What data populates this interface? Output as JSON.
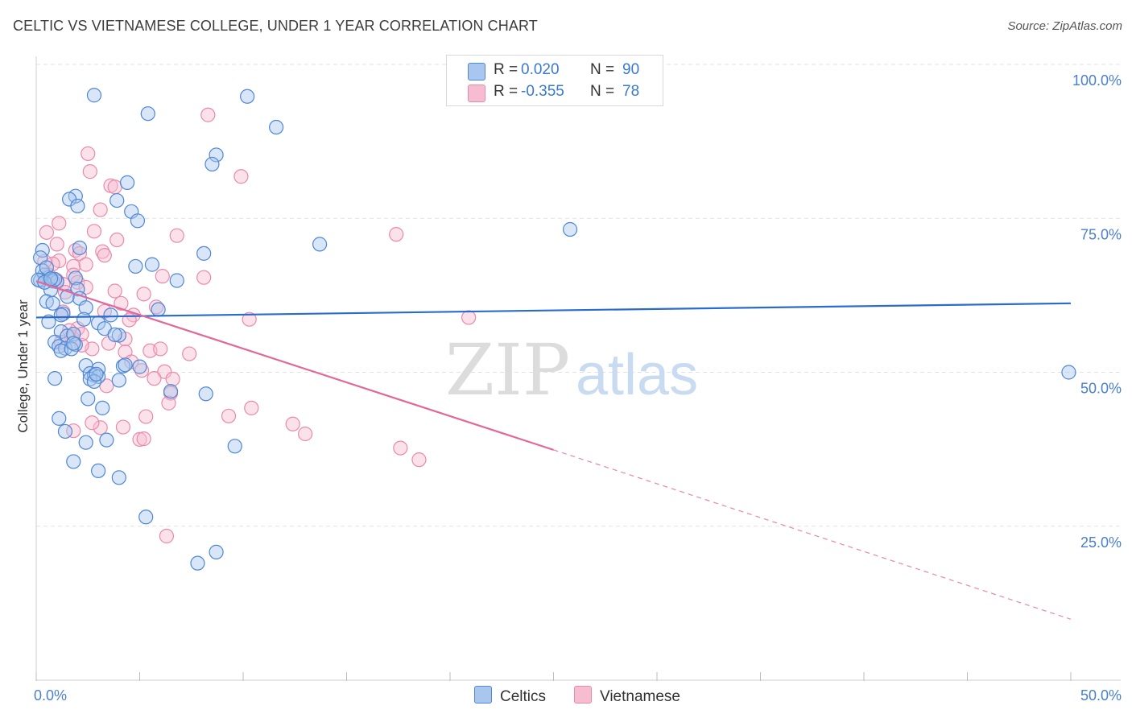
{
  "title": "CELTIC VS VIETNAMESE COLLEGE, UNDER 1 YEAR CORRELATION CHART",
  "source": "Source: ZipAtlas.com",
  "watermark": {
    "zip": "ZIP",
    "atlas": "atlas"
  },
  "legend": {
    "celtic": {
      "r_label": "R =",
      "r_value": "0.020",
      "n_label": "N =",
      "n_value": "90"
    },
    "vietnamese": {
      "r_label": "R =",
      "r_value": "-0.355",
      "n_label": "N =",
      "n_value": "78"
    }
  },
  "bottom_legend": {
    "celtic": "Celtics",
    "vietnamese": "Vietnamese"
  },
  "colors": {
    "celtic_fill": "#a9c7ee",
    "celtic_stroke": "#4f86d6",
    "celtic_line": "#2a6bcf",
    "viet_fill": "#f6bdd0",
    "viet_stroke": "#e98aab",
    "viet_line": "#e0689a",
    "grid": "#e2e2e2",
    "axis_text": "#4a7fd0"
  },
  "chart_data": {
    "type": "scatter",
    "title": "CELTIC VS VIETNAMESE COLLEGE, UNDER 1 YEAR CORRELATION CHART",
    "xlabel": "",
    "ylabel": "College, Under 1 year",
    "xlim": [
      0,
      50
    ],
    "ylim": [
      0,
      105
    ],
    "x_tick_labels": [
      "0.0%",
      "50.0%"
    ],
    "y_tick_labels": [
      "100.0%",
      "75.0%",
      "50.0%",
      "25.0%"
    ],
    "y_ticks": [
      100,
      75,
      50,
      25
    ],
    "grid": true,
    "series": [
      {
        "name": "Celtics",
        "r": 0.02,
        "n": 90,
        "trend": {
          "x0": 0,
          "y0": 58.9,
          "x1": 50,
          "y1": 61.2
        },
        "points": [
          [
            2.8,
            95.0
          ],
          [
            10.2,
            94.8
          ],
          [
            5.4,
            92.0
          ],
          [
            11.6,
            89.8
          ],
          [
            8.7,
            85.3
          ],
          [
            8.5,
            83.8
          ],
          [
            4.4,
            80.8
          ],
          [
            1.9,
            78.6
          ],
          [
            1.6,
            78.1
          ],
          [
            3.9,
            77.9
          ],
          [
            2.0,
            77.0
          ],
          [
            4.6,
            76.1
          ],
          [
            4.9,
            74.6
          ],
          [
            25.8,
            73.2
          ],
          [
            13.7,
            70.8
          ],
          [
            2.1,
            70.2
          ],
          [
            0.3,
            69.8
          ],
          [
            8.1,
            69.3
          ],
          [
            0.2,
            68.6
          ],
          [
            4.8,
            67.2
          ],
          [
            5.6,
            67.5
          ],
          [
            0.4,
            65.8
          ],
          [
            0.6,
            65.4
          ],
          [
            1.9,
            65.3
          ],
          [
            0.2,
            64.9
          ],
          [
            0.8,
            64.8
          ],
          [
            1.0,
            64.7
          ],
          [
            6.8,
            64.9
          ],
          [
            2.0,
            63.5
          ],
          [
            0.7,
            63.4
          ],
          [
            2.1,
            62.0
          ],
          [
            0.5,
            61.5
          ],
          [
            0.8,
            61.2
          ],
          [
            2.4,
            60.5
          ],
          [
            5.9,
            60.2
          ],
          [
            1.3,
            59.5
          ],
          [
            1.2,
            59.3
          ],
          [
            3.6,
            59.3
          ],
          [
            2.3,
            58.6
          ],
          [
            0.6,
            58.2
          ],
          [
            3.0,
            58.0
          ],
          [
            3.3,
            57.1
          ],
          [
            1.2,
            56.6
          ],
          [
            1.5,
            55.9
          ],
          [
            1.8,
            56.2
          ],
          [
            4.0,
            56.0
          ],
          [
            0.9,
            54.9
          ],
          [
            1.1,
            54.2
          ],
          [
            1.9,
            54.5
          ],
          [
            1.4,
            53.9
          ],
          [
            1.2,
            53.5
          ],
          [
            1.7,
            53.8
          ],
          [
            2.4,
            51.1
          ],
          [
            4.2,
            51.0
          ],
          [
            4.3,
            51.2
          ],
          [
            5.0,
            50.9
          ],
          [
            3.0,
            50.5
          ],
          [
            2.6,
            49.8
          ],
          [
            2.8,
            49.5
          ],
          [
            3.0,
            49.3
          ],
          [
            2.6,
            48.9
          ],
          [
            0.9,
            49.0
          ],
          [
            2.8,
            48.5
          ],
          [
            4.0,
            48.7
          ],
          [
            49.9,
            50.0
          ],
          [
            6.5,
            46.9
          ],
          [
            8.2,
            46.5
          ],
          [
            2.5,
            45.7
          ],
          [
            3.2,
            44.2
          ],
          [
            1.1,
            42.5
          ],
          [
            1.4,
            40.4
          ],
          [
            3.4,
            39.0
          ],
          [
            2.4,
            38.6
          ],
          [
            9.6,
            38.0
          ],
          [
            1.8,
            35.5
          ],
          [
            3.0,
            34.0
          ],
          [
            4.0,
            32.9
          ],
          [
            5.3,
            26.5
          ],
          [
            8.7,
            20.8
          ],
          [
            7.8,
            19.0
          ],
          [
            0.3,
            66.5
          ],
          [
            0.5,
            67.0
          ],
          [
            0.9,
            65.1
          ],
          [
            1.5,
            62.3
          ],
          [
            2.9,
            49.7
          ],
          [
            1.8,
            54.7
          ],
          [
            0.1,
            65.0
          ],
          [
            0.4,
            64.6
          ],
          [
            0.7,
            65.2
          ],
          [
            3.8,
            56.1
          ]
        ]
      },
      {
        "name": "Vietnamese",
        "r": -0.355,
        "n": 78,
        "trend": {
          "x0": 0,
          "y0": 64.8,
          "x1": 25,
          "y1": 37.4,
          "dash_x1": 50,
          "dash_y1": 9.9
        },
        "points": [
          [
            8.3,
            91.8
          ],
          [
            2.5,
            85.5
          ],
          [
            2.6,
            82.6
          ],
          [
            9.9,
            81.8
          ],
          [
            3.6,
            80.3
          ],
          [
            3.8,
            80.1
          ],
          [
            3.1,
            76.4
          ],
          [
            1.1,
            74.2
          ],
          [
            2.8,
            72.9
          ],
          [
            0.5,
            72.7
          ],
          [
            6.8,
            72.2
          ],
          [
            17.4,
            72.4
          ],
          [
            3.9,
            71.5
          ],
          [
            1.0,
            70.8
          ],
          [
            1.9,
            69.8
          ],
          [
            3.2,
            69.6
          ],
          [
            2.1,
            69.3
          ],
          [
            3.3,
            69.0
          ],
          [
            1.1,
            68.1
          ],
          [
            0.8,
            67.6
          ],
          [
            1.8,
            67.2
          ],
          [
            1.8,
            65.8
          ],
          [
            0.7,
            65.1
          ],
          [
            2.0,
            64.6
          ],
          [
            8.1,
            65.4
          ],
          [
            6.1,
            65.6
          ],
          [
            1.3,
            64.3
          ],
          [
            2.4,
            63.8
          ],
          [
            1.4,
            63.0
          ],
          [
            5.2,
            62.7
          ],
          [
            4.1,
            61.2
          ],
          [
            5.8,
            60.6
          ],
          [
            1.3,
            59.8
          ],
          [
            3.3,
            59.9
          ],
          [
            20.9,
            58.9
          ],
          [
            10.3,
            58.6
          ],
          [
            4.7,
            59.3
          ],
          [
            4.5,
            58.5
          ],
          [
            2.0,
            57.1
          ],
          [
            1.7,
            55.8
          ],
          [
            4.3,
            55.4
          ],
          [
            3.5,
            54.7
          ],
          [
            1.2,
            54.9
          ],
          [
            5.5,
            53.5
          ],
          [
            6.0,
            53.8
          ],
          [
            4.3,
            53.3
          ],
          [
            2.7,
            53.8
          ],
          [
            4.6,
            51.7
          ],
          [
            6.2,
            50.1
          ],
          [
            5.7,
            49.0
          ],
          [
            6.6,
            48.9
          ],
          [
            3.4,
            47.8
          ],
          [
            6.5,
            46.6
          ],
          [
            6.4,
            45.0
          ],
          [
            10.4,
            44.2
          ],
          [
            9.3,
            42.9
          ],
          [
            5.3,
            42.8
          ],
          [
            12.4,
            41.6
          ],
          [
            3.1,
            41.0
          ],
          [
            4.2,
            41.1
          ],
          [
            1.8,
            40.5
          ],
          [
            13.0,
            40.0
          ],
          [
            5.0,
            39.1
          ],
          [
            5.2,
            39.2
          ],
          [
            17.6,
            37.7
          ],
          [
            18.5,
            35.8
          ],
          [
            6.3,
            23.4
          ],
          [
            2.2,
            54.4
          ],
          [
            1.0,
            64.9
          ],
          [
            0.6,
            65.8
          ],
          [
            1.6,
            56.8
          ],
          [
            2.2,
            56.2
          ],
          [
            0.4,
            68.0
          ],
          [
            2.7,
            41.8
          ],
          [
            5.1,
            50.3
          ],
          [
            7.4,
            53.0
          ],
          [
            3.8,
            63.2
          ],
          [
            2.4,
            67.5
          ]
        ]
      }
    ]
  }
}
